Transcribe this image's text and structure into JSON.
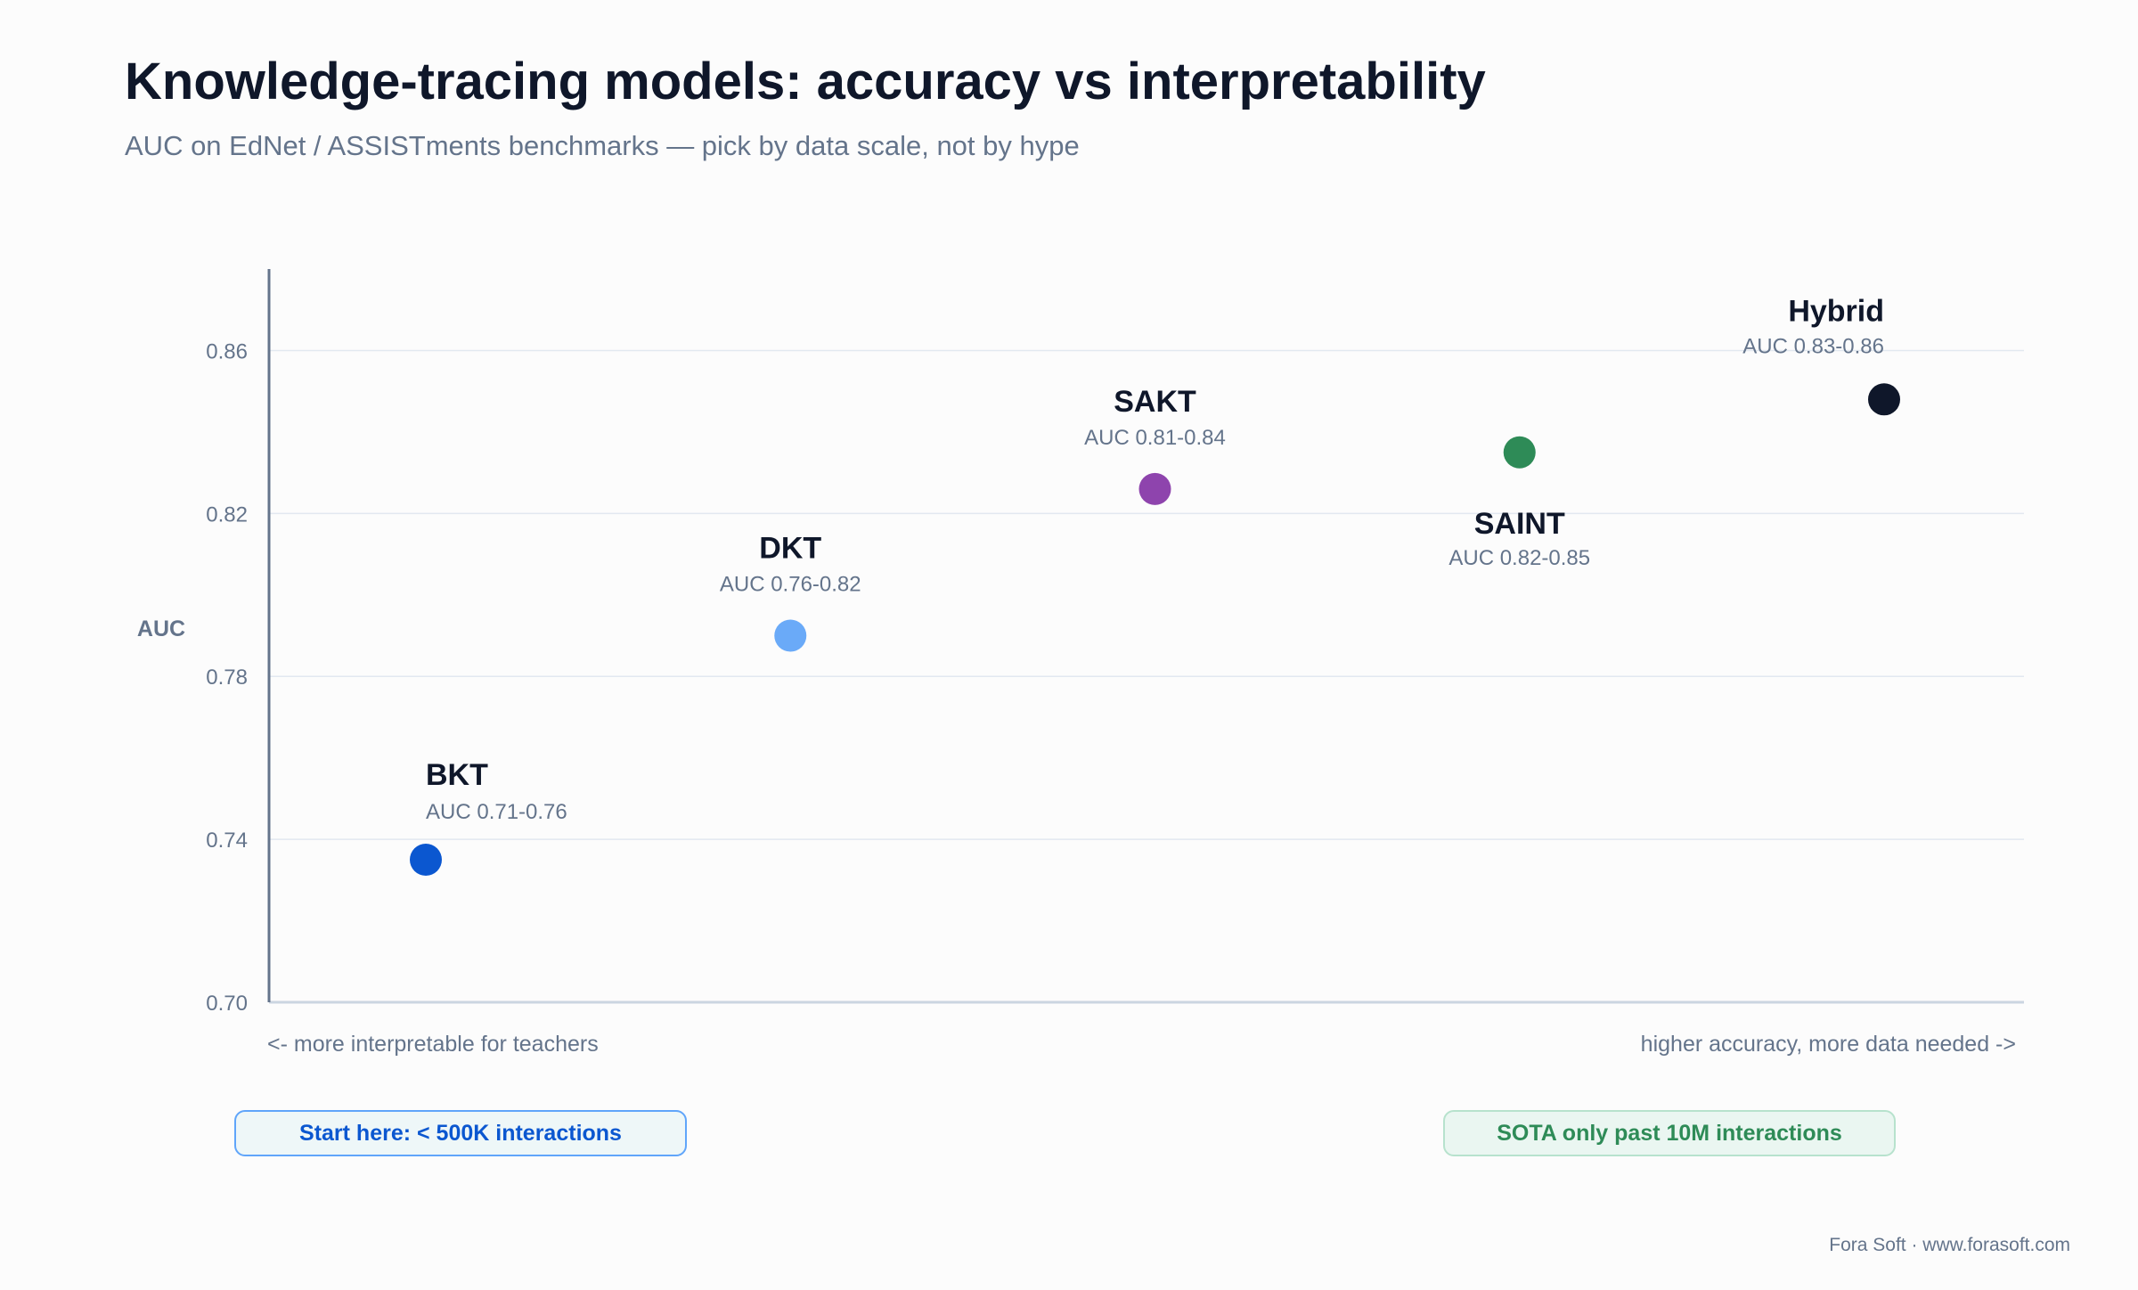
{
  "header": {
    "title": "Knowledge-tracing models: accuracy vs interpretability",
    "subtitle": "AUC on EdNet / ASSISTments benchmarks — pick by data scale, not by hype"
  },
  "chart_data": {
    "type": "scatter",
    "ylabel": "AUC",
    "xlabel": "",
    "ylim": [
      0.7,
      0.88
    ],
    "yticks": [
      "0.86",
      "0.82",
      "0.78",
      "0.74",
      "0.70"
    ],
    "grid": true,
    "points": [
      {
        "name": "BKT",
        "sublabel": "AUC 0.71-0.76",
        "x": 1,
        "y": 0.735,
        "color": "#0b57d0",
        "label_position": "above"
      },
      {
        "name": "DKT",
        "sublabel": "AUC 0.76-0.82",
        "x": 2,
        "y": 0.79,
        "color": "#6aaaf8",
        "label_position": "above"
      },
      {
        "name": "SAKT",
        "sublabel": "AUC 0.81-0.84",
        "x": 3,
        "y": 0.826,
        "color": "#8e44ad",
        "label_position": "above"
      },
      {
        "name": "SAINT",
        "sublabel": "AUC 0.82-0.85",
        "x": 4,
        "y": 0.835,
        "color": "#2e8b57",
        "label_position": "below"
      },
      {
        "name": "Hybrid",
        "sublabel": "AUC 0.83-0.86",
        "x": 5,
        "y": 0.848,
        "color": "#0f172a",
        "label_position": "above-left"
      }
    ]
  },
  "axis_notes": {
    "left": "<- more interpretable for teachers",
    "right": "higher accuracy, more data needed ->"
  },
  "callouts": {
    "start": "Start here: < 500K interactions",
    "sota": "SOTA only past 10M interactions"
  },
  "footer": {
    "credit": "Fora Soft · www.forasoft.com"
  }
}
